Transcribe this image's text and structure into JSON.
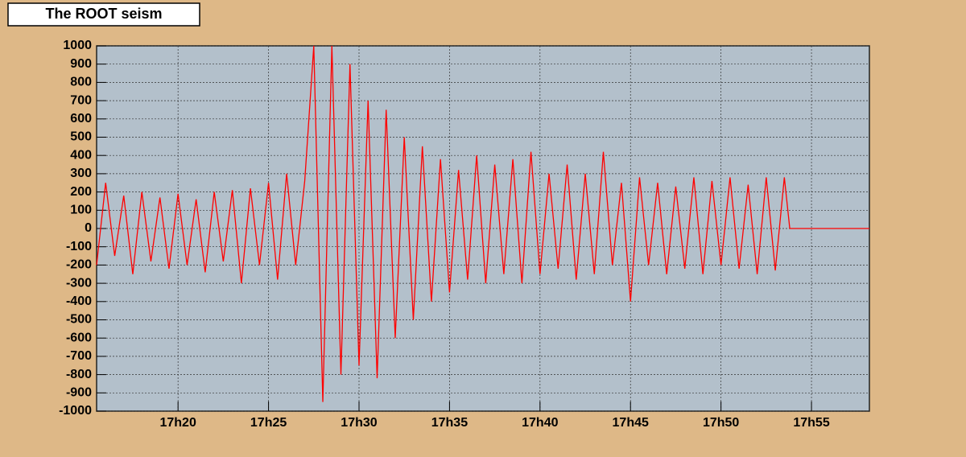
{
  "chart_data": {
    "type": "line",
    "title": "The ROOT seism",
    "x": [
      15.5,
      16.0,
      16.5,
      17.0,
      17.5,
      18.0,
      18.5,
      19.0,
      19.5,
      20.0,
      20.5,
      21.0,
      21.5,
      22.0,
      22.5,
      23.0,
      23.5,
      24.0,
      24.5,
      25.0,
      25.5,
      26.0,
      26.5,
      27.0,
      27.5,
      28.0,
      28.5,
      29.0,
      29.5,
      30.0,
      30.5,
      31.0,
      31.5,
      32.0,
      32.5,
      33.0,
      33.5,
      34.0,
      34.5,
      35.0,
      35.5,
      36.0,
      36.5,
      37.0,
      37.5,
      38.0,
      38.5,
      39.0,
      39.5,
      40.0,
      40.5,
      41.0,
      41.5,
      42.0,
      42.5,
      43.0,
      43.5,
      44.0,
      44.5,
      45.0,
      45.5,
      46.0,
      46.5,
      47.0,
      47.5,
      48.0,
      48.5,
      49.0,
      49.5,
      50.0,
      50.5,
      51.0,
      51.5,
      52.0,
      52.5,
      53.0,
      53.5,
      53.8,
      58.2
    ],
    "series": [
      {
        "color": "#ff0000",
        "values": [
          -200,
          250,
          -150,
          180,
          -250,
          200,
          -180,
          170,
          -220,
          190,
          -200,
          160,
          -240,
          200,
          -180,
          210,
          -300,
          220,
          -200,
          250,
          -280,
          300,
          -200,
          260,
          1000,
          -950,
          1000,
          -800,
          900,
          -750,
          700,
          -820,
          650,
          -600,
          500,
          -500,
          450,
          -400,
          380,
          -350,
          320,
          -280,
          400,
          -300,
          350,
          -250,
          380,
          -300,
          420,
          -250,
          300,
          -220,
          350,
          -280,
          300,
          -250,
          420,
          -200,
          250,
          -400,
          280,
          -200,
          250,
          -250,
          230,
          -220,
          280,
          -250,
          260,
          -200,
          280,
          -220,
          240,
          -250,
          280,
          -230,
          280,
          0,
          0
        ]
      }
    ],
    "xlim": [
      15.5,
      58.2
    ],
    "ylim": [
      -1000,
      1000
    ],
    "xticks": [
      {
        "value": 20,
        "label": "17h20"
      },
      {
        "value": 25,
        "label": "17h25"
      },
      {
        "value": 30,
        "label": "17h30"
      },
      {
        "value": 35,
        "label": "17h35"
      },
      {
        "value": 40,
        "label": "17h40"
      },
      {
        "value": 45,
        "label": "17h45"
      },
      {
        "value": 50,
        "label": "17h50"
      },
      {
        "value": 55,
        "label": "17h55"
      }
    ],
    "yticks": [
      -1000,
      -900,
      -800,
      -700,
      -600,
      -500,
      -400,
      -300,
      -200,
      -100,
      0,
      100,
      200,
      300,
      400,
      500,
      600,
      700,
      800,
      900,
      1000
    ],
    "grid": true
  }
}
